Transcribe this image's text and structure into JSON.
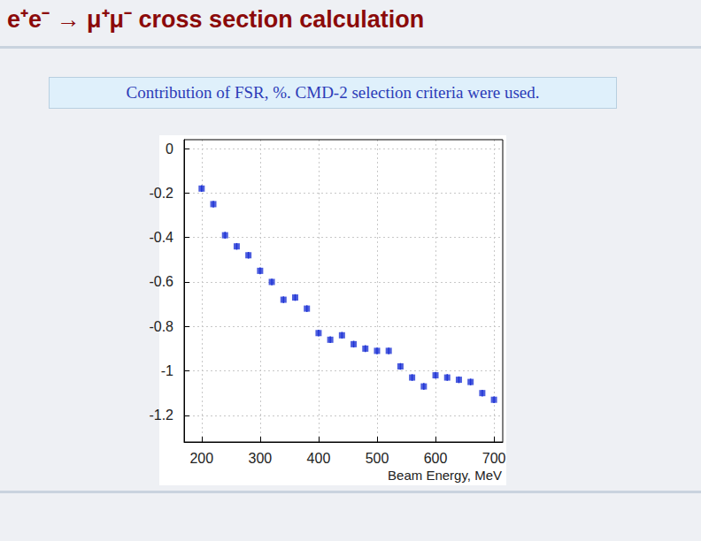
{
  "chart_data": {
    "type": "scatter",
    "title": "e⁺e⁻ → μ⁺μ⁻ cross section calculation",
    "subtitle": "Contribution of FSR, %. CMD-2 selection criteria were used.",
    "x_label": "Beam Energy, MeV",
    "x": [
      200,
      220,
      240,
      260,
      280,
      300,
      320,
      340,
      360,
      380,
      400,
      420,
      440,
      460,
      480,
      500,
      520,
      540,
      560,
      580,
      600,
      620,
      640,
      660,
      680,
      700
    ],
    "values": [
      -0.18,
      -0.25,
      -0.39,
      -0.44,
      -0.48,
      -0.55,
      -0.6,
      -0.68,
      -0.67,
      -0.72,
      -0.83,
      -0.86,
      -0.84,
      -0.88,
      -0.9,
      -0.91,
      -0.91,
      -0.98,
      -1.03,
      -1.07,
      -1.02,
      -1.03,
      -1.04,
      -1.05,
      -1.1,
      -1.13
    ],
    "errors": [
      0.015,
      0.015,
      0.015,
      0.015,
      0.015,
      0.015,
      0.015,
      0.015,
      0.015,
      0.015,
      0.015,
      0.015,
      0.015,
      0.015,
      0.015,
      0.015,
      0.015,
      0.015,
      0.015,
      0.015,
      0.015,
      0.015,
      0.015,
      0.015,
      0.015,
      0.015
    ],
    "color": "#1f35d6",
    "marker": "square",
    "xlim": [
      170,
      715
    ],
    "xticks": [
      200,
      300,
      400,
      500,
      600,
      700
    ],
    "ylim": [
      -1.32,
      0.04
    ],
    "yticks": [
      0,
      -0.2,
      -0.4,
      -0.6,
      -0.8,
      -1,
      -1.2
    ],
    "grid": true
  }
}
